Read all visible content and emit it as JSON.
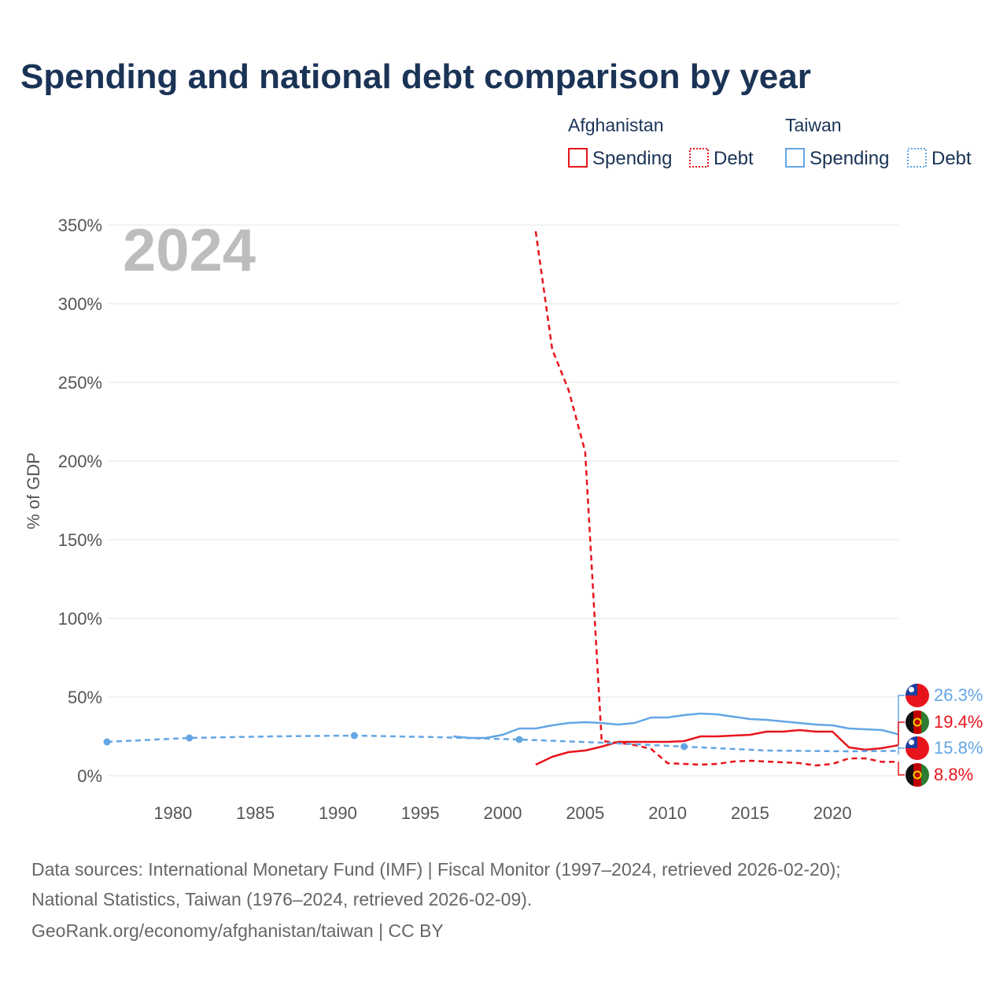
{
  "title": "Spending and national debt comparison by year",
  "year_watermark": "2024",
  "legend": {
    "groups": [
      {
        "name": "Afghanistan",
        "color": "#e8141c",
        "items": [
          {
            "label": "Spending",
            "style": "solid"
          },
          {
            "label": "Debt",
            "style": "dotted"
          }
        ]
      },
      {
        "name": "Taiwan",
        "color": "#63a6e4",
        "items": [
          {
            "label": "Spending",
            "style": "solid"
          },
          {
            "label": "Debt",
            "style": "dotted"
          }
        ]
      }
    ]
  },
  "chart_data": {
    "type": "line",
    "ylabel": "% of GDP",
    "xlim": [
      1976,
      2024
    ],
    "ylim": [
      0,
      350
    ],
    "y_ticks": [
      0,
      50,
      100,
      150,
      200,
      250,
      300,
      350
    ],
    "y_tick_labels": [
      "0%",
      "50%",
      "100%",
      "150%",
      "200%",
      "250%",
      "300%",
      "350%"
    ],
    "x_ticks": [
      1980,
      1985,
      1990,
      1995,
      2000,
      2005,
      2010,
      2015,
      2020
    ],
    "x_tick_labels": [
      "1980",
      "1985",
      "1990",
      "1995",
      "2000",
      "2005",
      "2010",
      "2015",
      "2020"
    ],
    "series": [
      {
        "name": "Afghanistan Debt",
        "country": "Afghanistan",
        "metric": "Debt",
        "color": "#e8141c",
        "dash": "dashed",
        "x": [
          2002,
          2003,
          2004,
          2005,
          2006,
          2007,
          2008,
          2009,
          2010,
          2011,
          2012,
          2013,
          2014,
          2015,
          2016,
          2017,
          2018,
          2019,
          2020,
          2021,
          2022,
          2023,
          2024
        ],
        "y": [
          346,
          271,
          245,
          206,
          22,
          21,
          19.5,
          17,
          8,
          7.5,
          7,
          7.5,
          9,
          9.5,
          9,
          8.5,
          8,
          6.5,
          7.5,
          11,
          11,
          8.8,
          8.8
        ]
      },
      {
        "name": "Afghanistan Spending",
        "country": "Afghanistan",
        "metric": "Spending",
        "color": "#e8141c",
        "dash": "solid",
        "x": [
          2002,
          2003,
          2004,
          2005,
          2006,
          2007,
          2008,
          2009,
          2010,
          2011,
          2012,
          2013,
          2014,
          2015,
          2016,
          2017,
          2018,
          2019,
          2020,
          2021,
          2022,
          2023,
          2024
        ],
        "y": [
          7,
          12,
          15,
          16,
          18.5,
          21.5,
          21.5,
          21.5,
          21.5,
          22,
          25,
          25,
          25.5,
          26,
          28,
          28,
          29,
          28,
          28,
          18,
          16.5,
          17.5,
          19.4
        ]
      },
      {
        "name": "Taiwan Debt",
        "country": "Taiwan",
        "metric": "Debt",
        "color": "#63a6e4",
        "dash": "dashed",
        "x": [
          1976,
          1981,
          1986,
          1991,
          1996,
          2001,
          2006,
          2011,
          2016,
          2021,
          2024
        ],
        "y": [
          21.5,
          24,
          25,
          25.5,
          24.5,
          23,
          21,
          18.5,
          16,
          15.5,
          15.8
        ],
        "markers": [
          1976,
          1981,
          1991,
          2001,
          2011
        ]
      },
      {
        "name": "Taiwan Spending",
        "country": "Taiwan",
        "metric": "Spending",
        "color": "#63a6e4",
        "dash": "solid",
        "x": [
          1997,
          1998,
          1999,
          2000,
          2001,
          2002,
          2003,
          2004,
          2005,
          2006,
          2007,
          2008,
          2009,
          2010,
          2011,
          2012,
          2013,
          2014,
          2015,
          2016,
          2017,
          2018,
          2019,
          2020,
          2021,
          2022,
          2023,
          2024
        ],
        "y": [
          25,
          24,
          24,
          26,
          30,
          30,
          32,
          33.5,
          34,
          33.5,
          32.5,
          33.5,
          37,
          37,
          38.5,
          39.5,
          39,
          37.5,
          36,
          35.5,
          34.5,
          33.5,
          32.5,
          32,
          30,
          29.5,
          29,
          26.3
        ]
      }
    ],
    "end_labels": [
      {
        "country": "Taiwan",
        "text": "26.3%",
        "value": 26.3,
        "color": "#63a6e4",
        "flag": "taiwan-flag-icon"
      },
      {
        "country": "Afghanistan",
        "text": "19.4%",
        "value": 19.4,
        "color": "#e8141c",
        "flag": "afghanistan-flag-icon"
      },
      {
        "country": "Taiwan",
        "text": "15.8%",
        "value": 15.8,
        "color": "#63a6e4",
        "flag": "taiwan-flag-icon"
      },
      {
        "country": "Afghanistan",
        "text": "8.8%",
        "value": 8.8,
        "color": "#e8141c",
        "flag": "afghanistan-flag-icon"
      }
    ]
  },
  "footer": {
    "line1": "Data sources: International Monetary Fund (IMF) | Fiscal Monitor (1997–2024, retrieved 2026-02-20);",
    "line2": "National Statistics, Taiwan (1976–2024, retrieved 2026-02-09).",
    "line3": "GeoRank.org/economy/afghanistan/taiwan | CC BY"
  }
}
